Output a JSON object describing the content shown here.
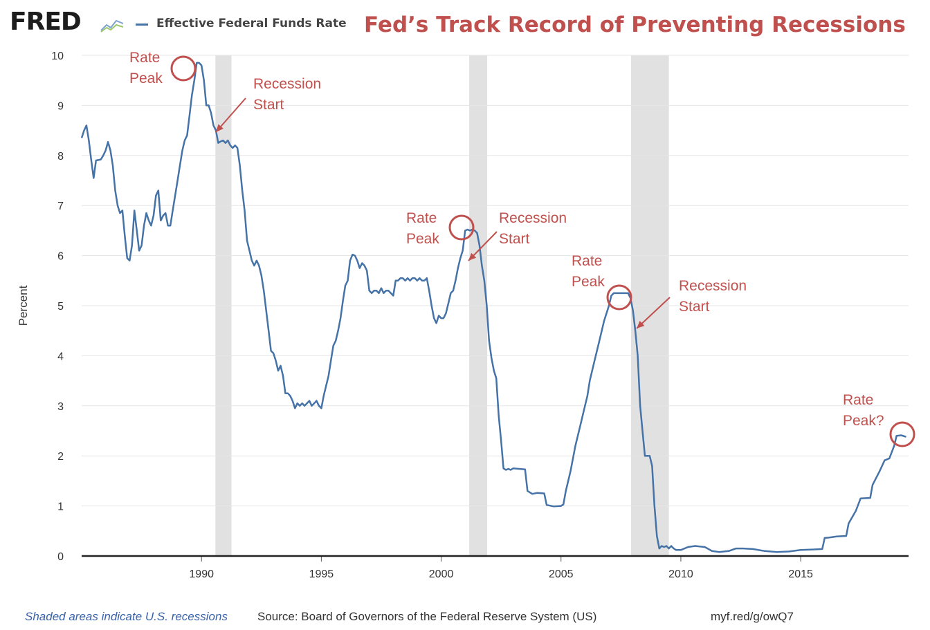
{
  "header": {
    "logo_text": "FRED",
    "legend_label": "Effective Federal Funds Rate",
    "headline": "Fed’s Track Record of Preventing Recessions"
  },
  "colors": {
    "series": "#4572a7",
    "headline": "#c0504d",
    "annotation": "#c0504d",
    "recession": "#e1e1e1",
    "grid": "#e6e6e6",
    "axis_text": "#333333",
    "note": "#3a62a8"
  },
  "icons": [
    "fred-chart-icon",
    "legend-line-icon",
    "peak-circle-icon",
    "arrow-icon"
  ],
  "chart_data": {
    "type": "line",
    "title": "Effective Federal Funds Rate",
    "xlabel": "",
    "ylabel": "Percent",
    "xlim": [
      1985.0,
      2019.5
    ],
    "ylim": [
      0,
      10
    ],
    "yticks": [
      "0",
      "1",
      "2",
      "3",
      "4",
      "5",
      "6",
      "7",
      "8",
      "9",
      "10"
    ],
    "xticks": [
      "1990",
      "1995",
      "2000",
      "2005",
      "2010",
      "2015"
    ],
    "grid": true,
    "recessions": [
      [
        1990.58,
        1991.25
      ],
      [
        2001.17,
        2001.92
      ],
      [
        2007.92,
        2009.5
      ]
    ],
    "series": [
      {
        "name": "Effective Federal Funds Rate",
        "points": [
          [
            1985.0,
            8.35
          ],
          [
            1985.1,
            8.5
          ],
          [
            1985.2,
            8.6
          ],
          [
            1985.3,
            8.3
          ],
          [
            1985.4,
            7.9
          ],
          [
            1985.5,
            7.55
          ],
          [
            1985.6,
            7.9
          ],
          [
            1985.8,
            7.92
          ],
          [
            1985.9,
            8.0
          ],
          [
            1986.0,
            8.1
          ],
          [
            1986.1,
            8.27
          ],
          [
            1986.2,
            8.1
          ],
          [
            1986.3,
            7.8
          ],
          [
            1986.4,
            7.3
          ],
          [
            1986.5,
            7.0
          ],
          [
            1986.6,
            6.85
          ],
          [
            1986.7,
            6.9
          ],
          [
            1986.8,
            6.4
          ],
          [
            1986.9,
            5.95
          ],
          [
            1987.0,
            5.9
          ],
          [
            1987.1,
            6.2
          ],
          [
            1987.2,
            6.9
          ],
          [
            1987.3,
            6.5
          ],
          [
            1987.4,
            6.1
          ],
          [
            1987.5,
            6.2
          ],
          [
            1987.6,
            6.6
          ],
          [
            1987.7,
            6.85
          ],
          [
            1987.8,
            6.7
          ],
          [
            1987.9,
            6.6
          ],
          [
            1988.0,
            6.8
          ],
          [
            1988.1,
            7.2
          ],
          [
            1988.2,
            7.3
          ],
          [
            1988.3,
            6.7
          ],
          [
            1988.4,
            6.8
          ],
          [
            1988.5,
            6.85
          ],
          [
            1988.6,
            6.6
          ],
          [
            1988.7,
            6.6
          ],
          [
            1988.8,
            6.9
          ],
          [
            1988.9,
            7.2
          ],
          [
            1989.0,
            7.5
          ],
          [
            1989.1,
            7.8
          ],
          [
            1989.2,
            8.1
          ],
          [
            1989.3,
            8.3
          ],
          [
            1989.4,
            8.4
          ],
          [
            1989.5,
            8.8
          ],
          [
            1989.6,
            9.2
          ],
          [
            1989.7,
            9.5
          ],
          [
            1989.8,
            9.85
          ],
          [
            1989.9,
            9.85
          ],
          [
            1990.0,
            9.8
          ],
          [
            1990.1,
            9.5
          ],
          [
            1990.2,
            9.0
          ],
          [
            1990.3,
            9.0
          ],
          [
            1990.4,
            8.85
          ],
          [
            1990.5,
            8.6
          ],
          [
            1990.6,
            8.5
          ],
          [
            1990.7,
            8.25
          ],
          [
            1990.8,
            8.28
          ],
          [
            1990.9,
            8.3
          ],
          [
            1991.0,
            8.25
          ],
          [
            1991.1,
            8.3
          ],
          [
            1991.2,
            8.2
          ],
          [
            1991.3,
            8.15
          ],
          [
            1991.4,
            8.2
          ],
          [
            1991.5,
            8.15
          ],
          [
            1991.6,
            7.8
          ],
          [
            1991.7,
            7.3
          ],
          [
            1991.8,
            6.9
          ],
          [
            1991.9,
            6.3
          ],
          [
            1992.0,
            6.1
          ],
          [
            1992.1,
            5.9
          ],
          [
            1992.2,
            5.8
          ],
          [
            1992.3,
            5.9
          ],
          [
            1992.4,
            5.8
          ],
          [
            1992.5,
            5.6
          ],
          [
            1992.6,
            5.3
          ],
          [
            1992.7,
            4.9
          ],
          [
            1992.8,
            4.5
          ],
          [
            1992.9,
            4.1
          ],
          [
            1993.0,
            4.05
          ],
          [
            1993.1,
            3.9
          ],
          [
            1993.2,
            3.7
          ],
          [
            1993.3,
            3.8
          ],
          [
            1993.4,
            3.6
          ],
          [
            1993.5,
            3.25
          ],
          [
            1993.6,
            3.25
          ],
          [
            1993.7,
            3.2
          ],
          [
            1993.8,
            3.1
          ],
          [
            1993.9,
            2.95
          ],
          [
            1994.0,
            3.05
          ],
          [
            1994.1,
            3.0
          ],
          [
            1994.2,
            3.05
          ],
          [
            1994.3,
            3.0
          ],
          [
            1994.4,
            3.05
          ],
          [
            1994.5,
            3.1
          ],
          [
            1994.6,
            3.0
          ],
          [
            1994.7,
            3.05
          ],
          [
            1994.8,
            3.1
          ],
          [
            1994.9,
            3.0
          ],
          [
            1995.0,
            2.95
          ],
          [
            1995.1,
            3.2
          ],
          [
            1995.2,
            3.4
          ],
          [
            1995.3,
            3.6
          ],
          [
            1995.4,
            3.9
          ],
          [
            1995.5,
            4.2
          ],
          [
            1995.6,
            4.3
          ],
          [
            1995.7,
            4.5
          ],
          [
            1995.8,
            4.75
          ],
          [
            1995.9,
            5.1
          ],
          [
            1996.0,
            5.4
          ],
          [
            1996.1,
            5.5
          ],
          [
            1996.2,
            5.9
          ],
          [
            1996.3,
            6.02
          ],
          [
            1996.4,
            6.0
          ],
          [
            1996.5,
            5.9
          ],
          [
            1996.6,
            5.75
          ],
          [
            1996.7,
            5.85
          ],
          [
            1996.8,
            5.8
          ],
          [
            1996.9,
            5.7
          ],
          [
            1997.0,
            5.3
          ],
          [
            1997.1,
            5.25
          ],
          [
            1997.2,
            5.3
          ],
          [
            1997.3,
            5.3
          ],
          [
            1997.4,
            5.25
          ],
          [
            1997.5,
            5.35
          ],
          [
            1997.6,
            5.25
          ],
          [
            1997.7,
            5.3
          ],
          [
            1997.8,
            5.3
          ],
          [
            1997.9,
            5.25
          ],
          [
            1998.0,
            5.2
          ],
          [
            1998.1,
            5.5
          ],
          [
            1998.2,
            5.5
          ],
          [
            1998.3,
            5.55
          ],
          [
            1998.4,
            5.55
          ],
          [
            1998.5,
            5.5
          ],
          [
            1998.6,
            5.55
          ],
          [
            1998.7,
            5.5
          ],
          [
            1998.8,
            5.55
          ],
          [
            1998.9,
            5.55
          ],
          [
            1999.0,
            5.5
          ],
          [
            1999.1,
            5.55
          ],
          [
            1999.2,
            5.5
          ],
          [
            1999.3,
            5.5
          ],
          [
            1999.4,
            5.55
          ],
          [
            1999.5,
            5.3
          ],
          [
            1999.6,
            5.0
          ],
          [
            1999.7,
            4.75
          ],
          [
            1999.8,
            4.65
          ],
          [
            1999.9,
            4.8
          ],
          [
            2000.0,
            4.75
          ],
          [
            2000.1,
            4.75
          ],
          [
            2000.2,
            4.85
          ],
          [
            2000.3,
            5.05
          ],
          [
            2000.4,
            5.25
          ],
          [
            2000.5,
            5.3
          ],
          [
            2000.6,
            5.5
          ],
          [
            2000.7,
            5.75
          ],
          [
            2000.8,
            5.95
          ],
          [
            2000.9,
            6.1
          ],
          [
            2001.0,
            6.5
          ],
          [
            2001.1,
            6.52
          ],
          [
            2001.2,
            6.5
          ],
          [
            2001.3,
            6.52
          ],
          [
            2001.4,
            6.5
          ],
          [
            2001.5,
            6.45
          ],
          [
            2001.6,
            6.2
          ],
          [
            2001.7,
            5.8
          ],
          [
            2001.8,
            5.5
          ],
          [
            2001.9,
            5.0
          ],
          [
            2002.0,
            4.3
          ],
          [
            2002.1,
            3.95
          ],
          [
            2002.2,
            3.7
          ],
          [
            2002.3,
            3.55
          ],
          [
            2002.4,
            2.8
          ],
          [
            2002.5,
            2.3
          ],
          [
            2002.6,
            1.75
          ],
          [
            2002.7,
            1.72
          ],
          [
            2002.8,
            1.74
          ],
          [
            2002.9,
            1.72
          ],
          [
            2003.0,
            1.75
          ],
          [
            2003.5,
            1.73
          ],
          [
            2003.6,
            1.3
          ],
          [
            2003.8,
            1.24
          ],
          [
            2004.0,
            1.26
          ],
          [
            2004.3,
            1.25
          ],
          [
            2004.4,
            1.02
          ],
          [
            2004.7,
            0.99
          ],
          [
            2005.0,
            1.0
          ],
          [
            2005.1,
            1.03
          ],
          [
            2005.2,
            1.3
          ],
          [
            2005.4,
            1.7
          ],
          [
            2005.6,
            2.2
          ],
          [
            2005.8,
            2.6
          ],
          [
            2006.0,
            3.0
          ],
          [
            2006.1,
            3.2
          ],
          [
            2006.2,
            3.5
          ],
          [
            2006.4,
            3.9
          ],
          [
            2006.6,
            4.3
          ],
          [
            2006.8,
            4.7
          ],
          [
            2007.0,
            5.0
          ],
          [
            2007.1,
            5.2
          ],
          [
            2007.2,
            5.25
          ],
          [
            2007.5,
            5.25
          ],
          [
            2007.8,
            5.25
          ],
          [
            2007.9,
            5.15
          ],
          [
            2008.0,
            4.9
          ],
          [
            2008.1,
            4.5
          ],
          [
            2008.2,
            4.0
          ],
          [
            2008.3,
            3.0
          ],
          [
            2008.4,
            2.5
          ],
          [
            2008.5,
            2.0
          ],
          [
            2008.6,
            2.0
          ],
          [
            2008.7,
            2.0
          ],
          [
            2008.8,
            1.8
          ],
          [
            2008.9,
            1.0
          ],
          [
            2009.0,
            0.4
          ],
          [
            2009.1,
            0.15
          ],
          [
            2009.2,
            0.2
          ],
          [
            2009.3,
            0.18
          ],
          [
            2009.4,
            0.2
          ],
          [
            2009.5,
            0.15
          ],
          [
            2009.6,
            0.2
          ],
          [
            2009.7,
            0.15
          ],
          [
            2009.8,
            0.12
          ],
          [
            2010.0,
            0.12
          ],
          [
            2010.3,
            0.18
          ],
          [
            2010.6,
            0.2
          ],
          [
            2011.0,
            0.18
          ],
          [
            2011.3,
            0.1
          ],
          [
            2011.6,
            0.08
          ],
          [
            2012.0,
            0.1
          ],
          [
            2012.3,
            0.15
          ],
          [
            2012.6,
            0.15
          ],
          [
            2013.0,
            0.14
          ],
          [
            2013.5,
            0.1
          ],
          [
            2014.0,
            0.08
          ],
          [
            2014.5,
            0.09
          ],
          [
            2015.0,
            0.12
          ],
          [
            2015.5,
            0.13
          ],
          [
            2015.9,
            0.14
          ],
          [
            2016.0,
            0.36
          ],
          [
            2016.2,
            0.37
          ],
          [
            2016.5,
            0.39
          ],
          [
            2016.9,
            0.4
          ],
          [
            2017.0,
            0.65
          ],
          [
            2017.3,
            0.9
          ],
          [
            2017.5,
            1.15
          ],
          [
            2017.9,
            1.16
          ],
          [
            2018.0,
            1.42
          ],
          [
            2018.3,
            1.7
          ],
          [
            2018.5,
            1.91
          ],
          [
            2018.7,
            1.95
          ],
          [
            2018.9,
            2.2
          ],
          [
            2019.0,
            2.4
          ],
          [
            2019.2,
            2.41
          ],
          [
            2019.4,
            2.38
          ]
        ]
      }
    ]
  },
  "annotations": [
    {
      "id": "peak-1989",
      "lines": [
        "Rate",
        "Peak"
      ]
    },
    {
      "id": "recession-1990",
      "lines": [
        "Recession",
        "Start"
      ]
    },
    {
      "id": "peak-2000",
      "lines": [
        "Rate",
        "Peak"
      ]
    },
    {
      "id": "recession-2001",
      "lines": [
        "Recession",
        "Start"
      ]
    },
    {
      "id": "peak-2006",
      "lines": [
        "Rate",
        "Peak"
      ]
    },
    {
      "id": "recession-2007",
      "lines": [
        "Recession",
        "Start"
      ]
    },
    {
      "id": "peak-2019",
      "lines": [
        "Rate",
        "Peak?"
      ]
    }
  ],
  "footer": {
    "note": "Shaded areas indicate U.S. recessions",
    "source": "Source: Board of Governors of the Federal Reserve System (US)",
    "link": "myf.red/g/owQ7"
  }
}
